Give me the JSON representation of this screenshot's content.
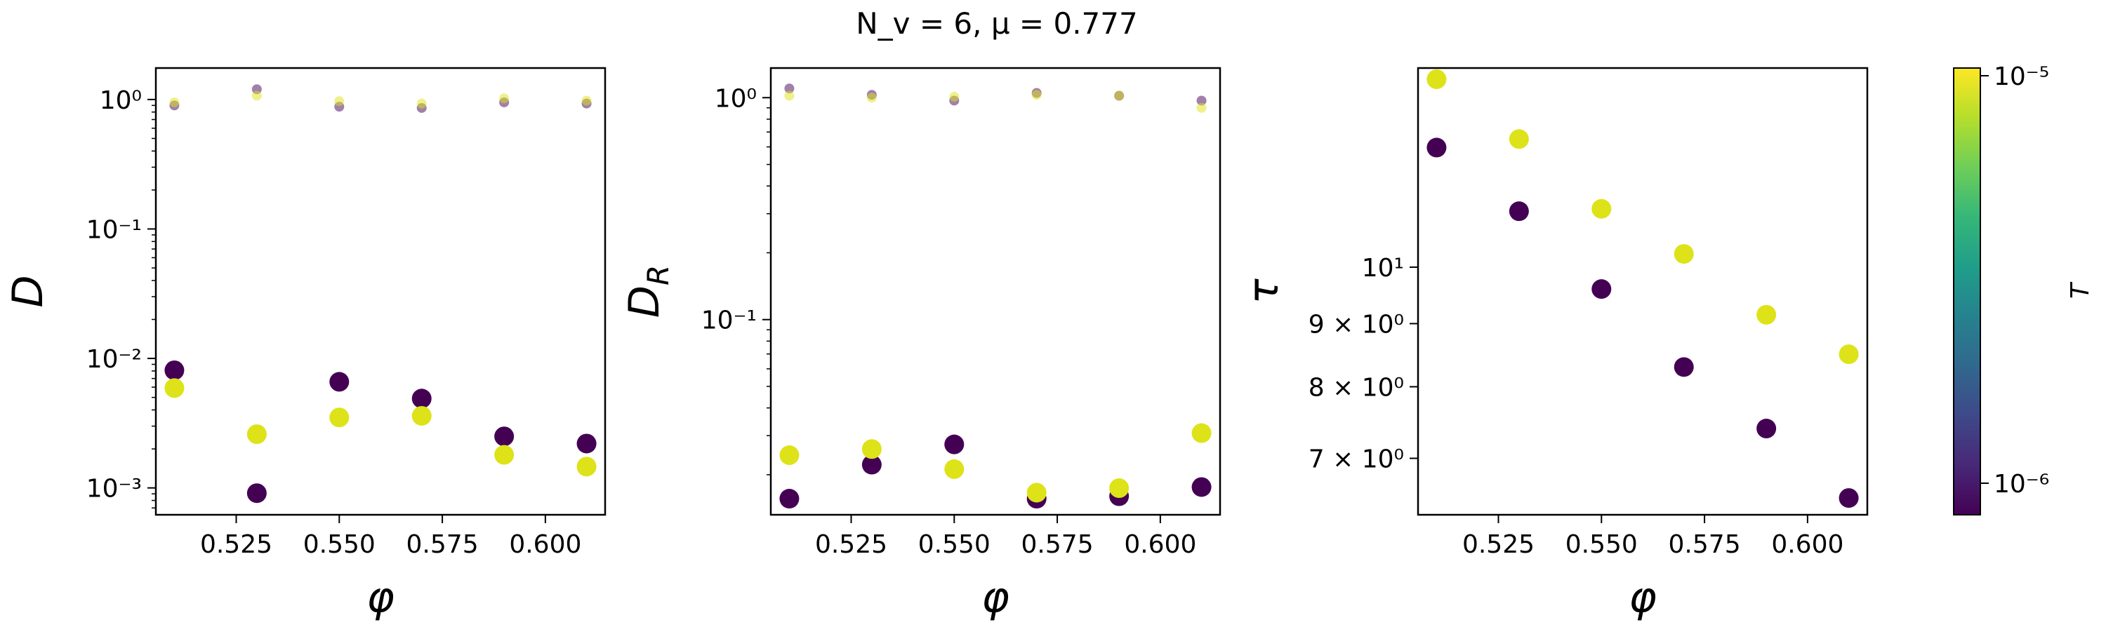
{
  "figure": {
    "title": "N_v = 6, μ = 0.777"
  },
  "colors": {
    "low_T": "#440154",
    "high_T": "#dde318",
    "colormap": [
      "#440154",
      "#482878",
      "#3e4989",
      "#31688e",
      "#26828e",
      "#1f9e89",
      "#35b779",
      "#6ece58",
      "#b5de2b",
      "#fde725"
    ]
  },
  "colorbar": {
    "label": "T",
    "top_label": "10⁻⁵",
    "bottom_label": "10⁻⁶",
    "range": [
      8.5e-07,
      1.05e-05
    ]
  },
  "chart_data": [
    {
      "type": "scatter",
      "xlabel": "φ",
      "ylabel": "D",
      "yscale": "log",
      "xlim": [
        0.5055,
        0.6145
      ],
      "ylim": [
        0.00062,
        1.75
      ],
      "xticks": [
        0.525,
        0.55,
        0.575,
        0.6
      ],
      "xtick_labels": [
        "0.525",
        "0.550",
        "0.575",
        "0.600"
      ],
      "yticks": [
        0.001,
        0.01,
        0.1,
        1.0
      ],
      "ytick_labels": [
        "10⁻³",
        "10⁻²",
        "10⁻¹",
        "10⁰"
      ],
      "series": [
        {
          "color_key": "low_T",
          "size": "large",
          "x": [
            0.51,
            0.53,
            0.55,
            0.57,
            0.59,
            0.61
          ],
          "y": [
            0.0081,
            0.00091,
            0.0066,
            0.0049,
            0.0025,
            0.0022
          ]
        },
        {
          "color_key": "high_T",
          "size": "large",
          "x": [
            0.51,
            0.53,
            0.55,
            0.57,
            0.59,
            0.61
          ],
          "y": [
            0.0059,
            0.0026,
            0.0035,
            0.0036,
            0.0018,
            0.00146
          ]
        },
        {
          "color_key": "low_T",
          "size": "small",
          "alpha": 0.5,
          "x": [
            0.51,
            0.53,
            0.55,
            0.57,
            0.59,
            0.61
          ],
          "y": [
            0.9,
            1.2,
            0.88,
            0.86,
            0.95,
            0.93
          ]
        },
        {
          "color_key": "high_T",
          "size": "small",
          "alpha": 0.5,
          "x": [
            0.51,
            0.53,
            0.55,
            0.57,
            0.59,
            0.61
          ],
          "y": [
            0.95,
            1.07,
            0.97,
            0.93,
            1.02,
            0.98
          ]
        }
      ]
    },
    {
      "type": "scatter",
      "xlabel": "φ",
      "ylabel": "D_R",
      "yscale": "log",
      "xlim": [
        0.5055,
        0.6145
      ],
      "ylim": [
        0.0132,
        1.36
      ],
      "xticks": [
        0.525,
        0.55,
        0.575,
        0.6
      ],
      "xtick_labels": [
        "0.525",
        "0.550",
        "0.575",
        "0.600"
      ],
      "yticks": [
        0.1,
        1.0
      ],
      "ytick_labels": [
        "10⁻¹",
        "10⁰"
      ],
      "series": [
        {
          "color_key": "low_T",
          "size": "large",
          "x": [
            0.51,
            0.53,
            0.55,
            0.57,
            0.59,
            0.61
          ],
          "y": [
            0.0156,
            0.0222,
            0.0274,
            0.0156,
            0.016,
            0.0176
          ]
        },
        {
          "color_key": "high_T",
          "size": "large",
          "x": [
            0.51,
            0.53,
            0.55,
            0.57,
            0.59,
            0.61
          ],
          "y": [
            0.0245,
            0.0261,
            0.0212,
            0.0166,
            0.0174,
            0.0308
          ]
        },
        {
          "color_key": "low_T",
          "size": "small",
          "alpha": 0.5,
          "x": [
            0.51,
            0.53,
            0.55,
            0.57,
            0.59,
            0.61
          ],
          "y": [
            1.1,
            1.03,
            0.97,
            1.05,
            1.02,
            0.97
          ]
        },
        {
          "color_key": "high_T",
          "size": "small",
          "alpha": 0.5,
          "x": [
            0.51,
            0.53,
            0.55,
            0.57,
            0.59,
            0.61
          ],
          "y": [
            1.02,
            1.0,
            1.01,
            1.03,
            1.02,
            0.9
          ]
        }
      ]
    },
    {
      "type": "scatter",
      "xlabel": "φ",
      "ylabel": "τ",
      "yscale": "log",
      "xlim": [
        0.5055,
        0.6145
      ],
      "ylim": [
        6.3,
        14.5
      ],
      "xticks": [
        0.525,
        0.55,
        0.575,
        0.6
      ],
      "xtick_labels": [
        "0.525",
        "0.550",
        "0.575",
        "0.600"
      ],
      "yticks": [
        7,
        8,
        9,
        10
      ],
      "ytick_labels": [
        "7 × 10⁰",
        "8 × 10⁰",
        "9 × 10⁰",
        "10¹"
      ],
      "series": [
        {
          "color_key": "low_T",
          "size": "large",
          "x": [
            0.51,
            0.53,
            0.55,
            0.57,
            0.59,
            0.61
          ],
          "y": [
            12.5,
            11.1,
            9.6,
            8.3,
            7.4,
            6.5
          ]
        },
        {
          "color_key": "high_T",
          "size": "large",
          "x": [
            0.51,
            0.53,
            0.55,
            0.57,
            0.59,
            0.61
          ],
          "y": [
            14.2,
            12.7,
            11.15,
            10.25,
            9.15,
            8.5
          ]
        }
      ]
    }
  ]
}
